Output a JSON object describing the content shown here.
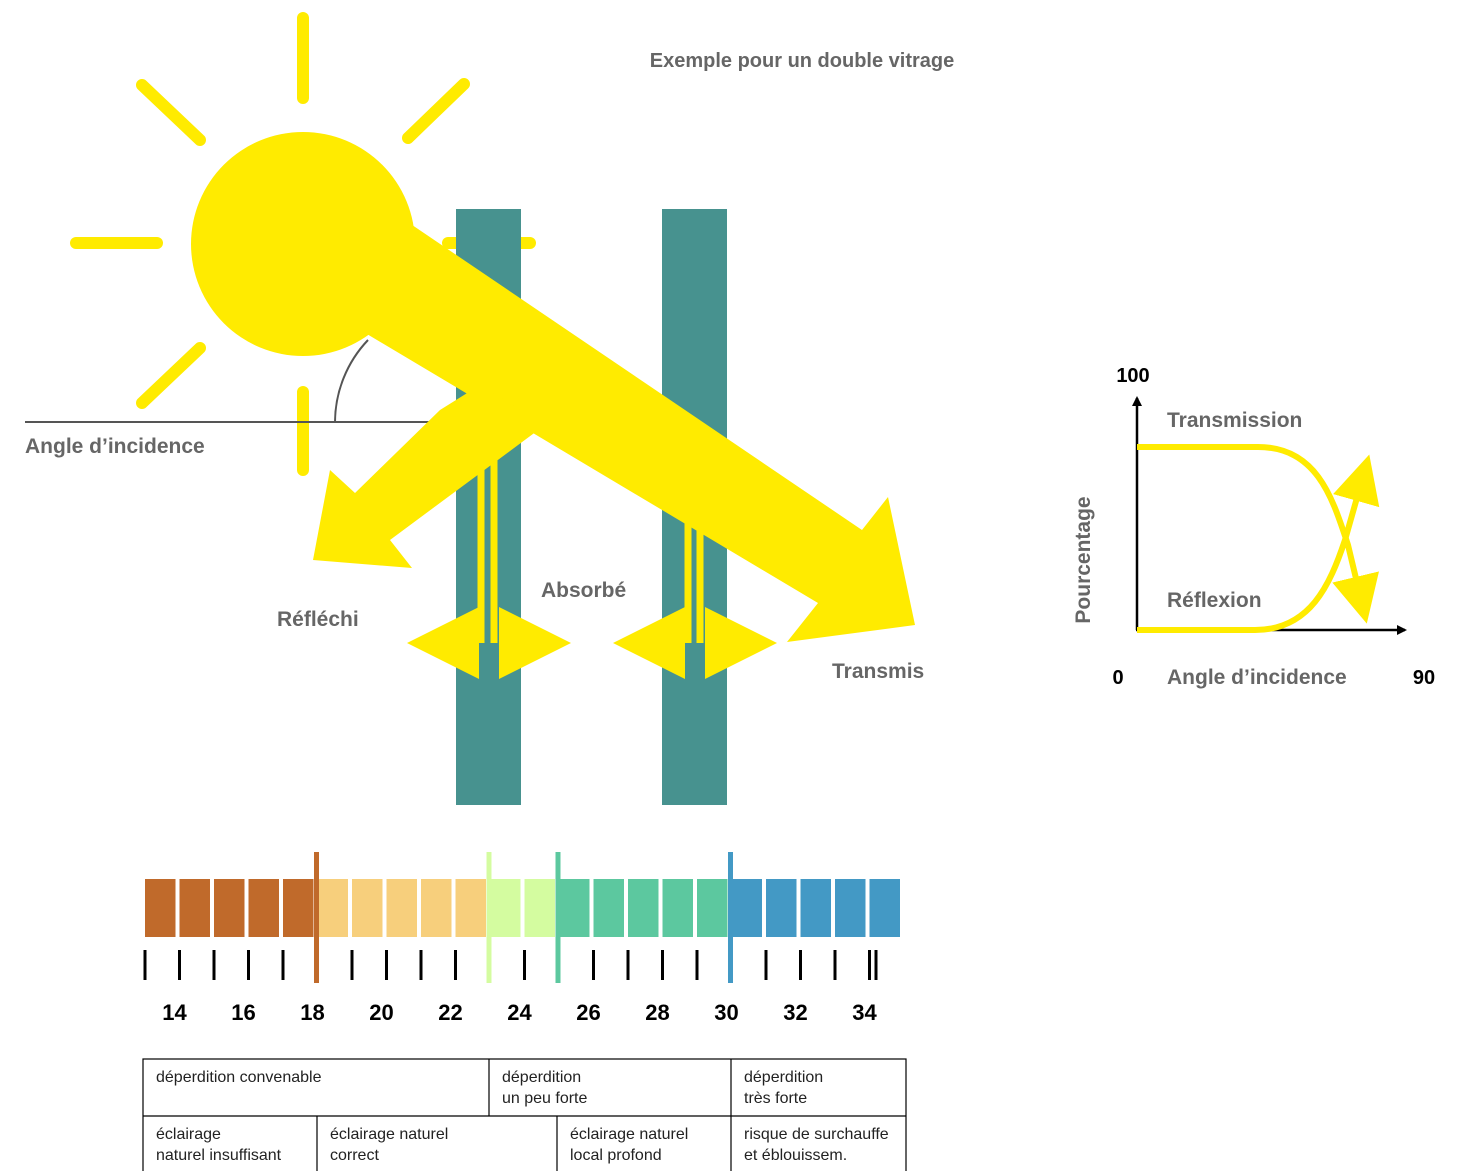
{
  "title": "Exemple pour un double vitrage",
  "labels": {
    "angle": "Angle d’incidence",
    "reflected": "Réfléchi",
    "absorbed": "Absorbé",
    "transmitted": "Transmis"
  },
  "mini_chart": {
    "y_max": "100",
    "x_min": "0",
    "x_max": "90",
    "y_label": "Pourcentage",
    "x_label": "Angle d’incidence",
    "curve_top": "Transmission",
    "curve_bottom": "Réflexion"
  },
  "scale": {
    "labels": [
      "14",
      "16",
      "18",
      "20",
      "22",
      "24",
      "26",
      "28",
      "30",
      "32",
      "34"
    ]
  },
  "table": {
    "rows": [
      [
        [
          "déperdition convenable"
        ],
        [
          "déperdition",
          "un peu forte"
        ],
        [
          "déperdition",
          "très forte"
        ]
      ],
      [
        [
          "éclairage",
          "naturel insuffisant"
        ],
        [
          "éclairage naturel",
          "correct"
        ],
        [
          "éclairage naturel",
          "local profond"
        ],
        [
          "risque de surchauffe",
          "et éblouissem."
        ]
      ]
    ]
  }
}
